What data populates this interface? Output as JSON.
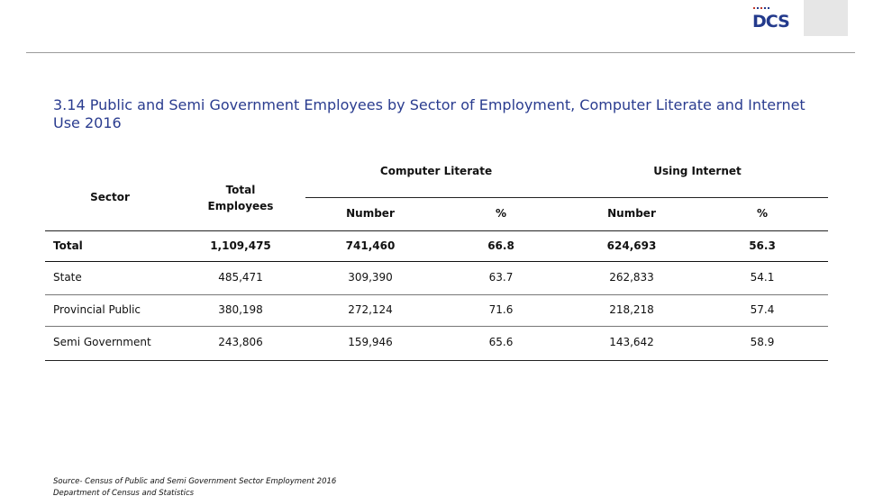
{
  "logo": {
    "text": "DCS"
  },
  "title": "3.14  Public and Semi Government Employees by Sector of Employment, Computer Literate and Internet Use  2016",
  "table": {
    "headers": {
      "sector": "Sector",
      "total_employees": "Total Employees",
      "computer_literate": "Computer Literate",
      "using_internet": "Using Internet",
      "number": "Number",
      "percent": "%"
    },
    "rows": [
      {
        "sector": "Total",
        "total": "1,109,475",
        "cl_number": "741,460",
        "cl_pct": "66.8",
        "ui_number": "624,693",
        "ui_pct": "56.3"
      },
      {
        "sector": "State",
        "total": "485,471",
        "cl_number": "309,390",
        "cl_pct": "63.7",
        "ui_number": "262,833",
        "ui_pct": "54.1"
      },
      {
        "sector": "Provincial Public",
        "total": "380,198",
        "cl_number": "272,124",
        "cl_pct": "71.6",
        "ui_number": "218,218",
        "ui_pct": "57.4"
      },
      {
        "sector": "Semi Government",
        "total": "243,806",
        "cl_number": "159,946",
        "cl_pct": "65.6",
        "ui_number": "143,642",
        "ui_pct": "58.9"
      }
    ]
  },
  "source": {
    "line1": "Source-  Census of Public and Semi Government Sector Employment 2016",
    "line2": "Department of Census and Statistics"
  },
  "colors": {
    "title": "#2a3c8f",
    "logo": "#233a8c"
  }
}
